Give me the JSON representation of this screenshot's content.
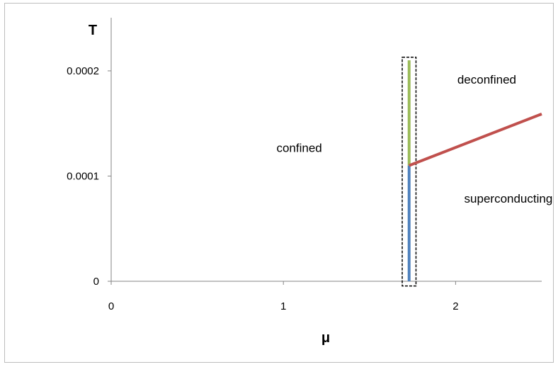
{
  "chart_data": {
    "type": "line",
    "title": "",
    "xlabel": "μ",
    "ylabel": "T",
    "xlim": [
      0,
      2.5
    ],
    "ylim": [
      0,
      0.0002
    ],
    "x_ticks": [
      "0",
      "1",
      "2"
    ],
    "x_tick_values": [
      0,
      1,
      2
    ],
    "y_ticks": [
      "0",
      "0.0001",
      "0.0002"
    ],
    "y_tick_values": [
      0,
      0.0001,
      0.0002
    ],
    "grid": false,
    "series": [
      {
        "color": "#4f81bd",
        "points": [
          [
            1.73,
            0
          ],
          [
            1.73,
            0.00011
          ]
        ]
      },
      {
        "color": "#9bbb59",
        "points": [
          [
            1.73,
            0.00011
          ],
          [
            1.73,
            0.00021
          ]
        ]
      },
      {
        "color": "#c0504d",
        "points": [
          [
            1.73,
            0.00011
          ],
          [
            2.5,
            0.000159
          ]
        ]
      }
    ],
    "annotations": [
      {
        "text": "confined",
        "x": 0.96,
        "y": 0.000123
      },
      {
        "text": "deconfined",
        "x": 2.01,
        "y": 0.000188
      },
      {
        "text": "superconducting",
        "x": 2.05,
        "y": 7.48e-05
      }
    ],
    "highlight_box": {
      "style": "dashed",
      "x": [
        1.69,
        1.77
      ],
      "y": [
        -4.5e-06,
        0.000213
      ]
    }
  }
}
